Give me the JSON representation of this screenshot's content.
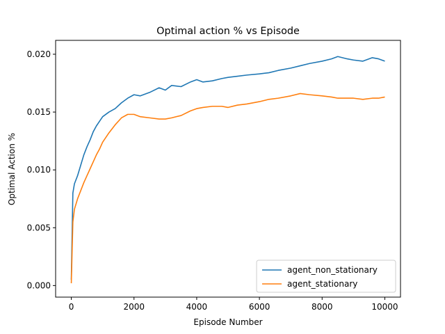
{
  "chart_data": {
    "type": "line",
    "title": "Optimal action % vs Episode",
    "xlabel": "Episode Number",
    "ylabel": "Optimal Action %",
    "xlim": [
      -500,
      10500
    ],
    "ylim": [
      -0.001,
      0.0212
    ],
    "xticks": [
      0,
      2000,
      4000,
      6000,
      8000,
      10000
    ],
    "xtick_labels": [
      "0",
      "2000",
      "4000",
      "6000",
      "8000",
      "10000"
    ],
    "yticks": [
      0.0,
      0.005,
      0.01,
      0.015,
      0.02
    ],
    "ytick_labels": [
      "0.000",
      "0.005",
      "0.010",
      "0.015",
      "0.020"
    ],
    "grid": false,
    "legend_position": "lower-right",
    "series": [
      {
        "name": "agent_non_stationary",
        "color": "#1f77b4",
        "x": [
          0,
          50,
          100,
          200,
          300,
          400,
          500,
          600,
          700,
          800,
          900,
          1000,
          1200,
          1400,
          1600,
          1800,
          2000,
          2200,
          2500,
          2800,
          3000,
          3200,
          3500,
          3800,
          4000,
          4200,
          4500,
          4800,
          5000,
          5300,
          5600,
          6000,
          6300,
          6600,
          7000,
          7300,
          7600,
          8000,
          8300,
          8500,
          8800,
          9000,
          9300,
          9600,
          9800,
          10000
        ],
        "y": [
          0.0005,
          0.008,
          0.0088,
          0.0095,
          0.0104,
          0.0113,
          0.012,
          0.0126,
          0.0133,
          0.0138,
          0.0142,
          0.0146,
          0.015,
          0.0153,
          0.0158,
          0.0162,
          0.0165,
          0.0164,
          0.0167,
          0.0171,
          0.0169,
          0.0173,
          0.0172,
          0.0176,
          0.0178,
          0.0176,
          0.0177,
          0.0179,
          0.018,
          0.0181,
          0.0182,
          0.0183,
          0.0184,
          0.0186,
          0.0188,
          0.019,
          0.0192,
          0.0194,
          0.0196,
          0.0198,
          0.0196,
          0.0195,
          0.0194,
          0.0197,
          0.0196,
          0.0194
        ]
      },
      {
        "name": "agent_stationary",
        "color": "#ff7f0e",
        "x": [
          0,
          50,
          100,
          200,
          300,
          400,
          500,
          600,
          700,
          800,
          900,
          1000,
          1200,
          1400,
          1600,
          1800,
          2000,
          2200,
          2500,
          2800,
          3000,
          3200,
          3500,
          3800,
          4000,
          4200,
          4500,
          4800,
          5000,
          5300,
          5600,
          6000,
          6300,
          6600,
          7000,
          7300,
          7600,
          8000,
          8300,
          8500,
          8800,
          9000,
          9300,
          9600,
          9800,
          10000
        ],
        "y": [
          0.0002,
          0.0055,
          0.0066,
          0.0075,
          0.0082,
          0.0089,
          0.0095,
          0.0101,
          0.0107,
          0.0113,
          0.0118,
          0.0124,
          0.0132,
          0.0139,
          0.0145,
          0.0148,
          0.0148,
          0.0146,
          0.0145,
          0.0144,
          0.0144,
          0.0145,
          0.0147,
          0.0151,
          0.0153,
          0.0154,
          0.0155,
          0.0155,
          0.0154,
          0.0156,
          0.0157,
          0.0159,
          0.0161,
          0.0162,
          0.0164,
          0.0166,
          0.0165,
          0.0164,
          0.0163,
          0.0162,
          0.0162,
          0.0162,
          0.0161,
          0.0162,
          0.0162,
          0.0163
        ]
      }
    ]
  }
}
